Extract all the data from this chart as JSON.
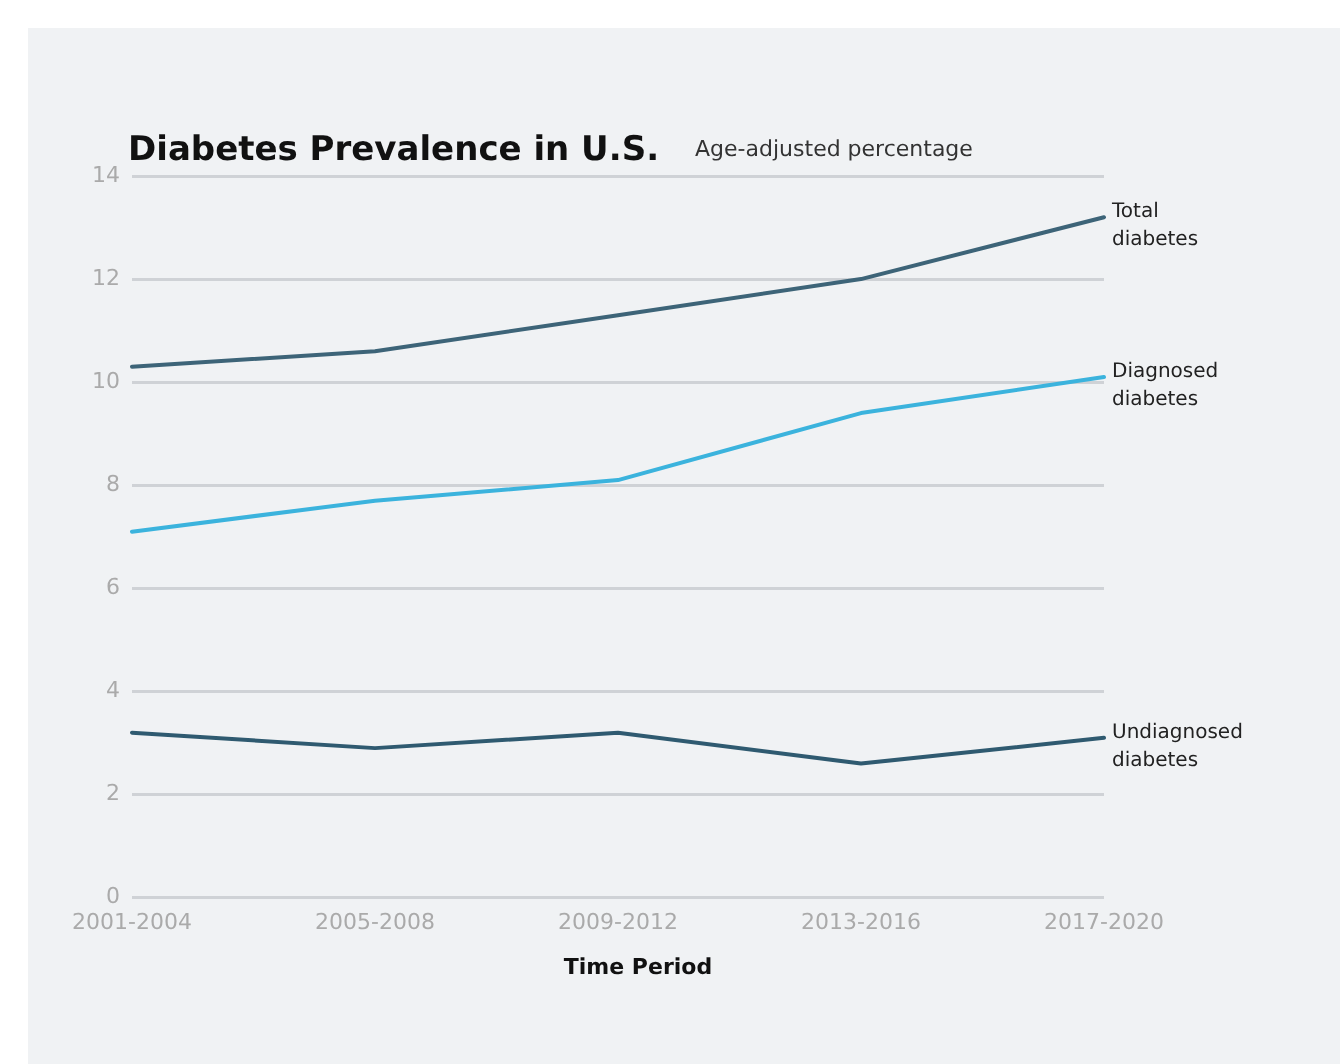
{
  "chart_data": {
    "type": "line",
    "title": "Diabetes Prevalence in U.S.",
    "subtitle": "Age-adjusted percentage",
    "xlabel": "Time Period",
    "categories": [
      "2001-2004",
      "2005-2008",
      "2009-2012",
      "2013-2016",
      "2017-2020"
    ],
    "series": [
      {
        "name": "Total diabetes",
        "color": "#3d6478",
        "values": [
          10.3,
          10.6,
          11.3,
          12.0,
          13.2
        ]
      },
      {
        "name": "Diagnosed diabetes",
        "color": "#3bb3dd",
        "values": [
          7.1,
          7.7,
          8.1,
          9.4,
          10.1
        ]
      },
      {
        "name": "Undiagnosed diabetes",
        "color": "#2f5a70",
        "values": [
          3.2,
          2.9,
          3.2,
          2.6,
          3.1
        ]
      }
    ],
    "ylim": [
      0,
      14
    ],
    "yticks": [
      0,
      2,
      4,
      6,
      8,
      10,
      12,
      14
    ],
    "grid": "y",
    "legend": false,
    "marker": "none",
    "line_style": "solid"
  }
}
